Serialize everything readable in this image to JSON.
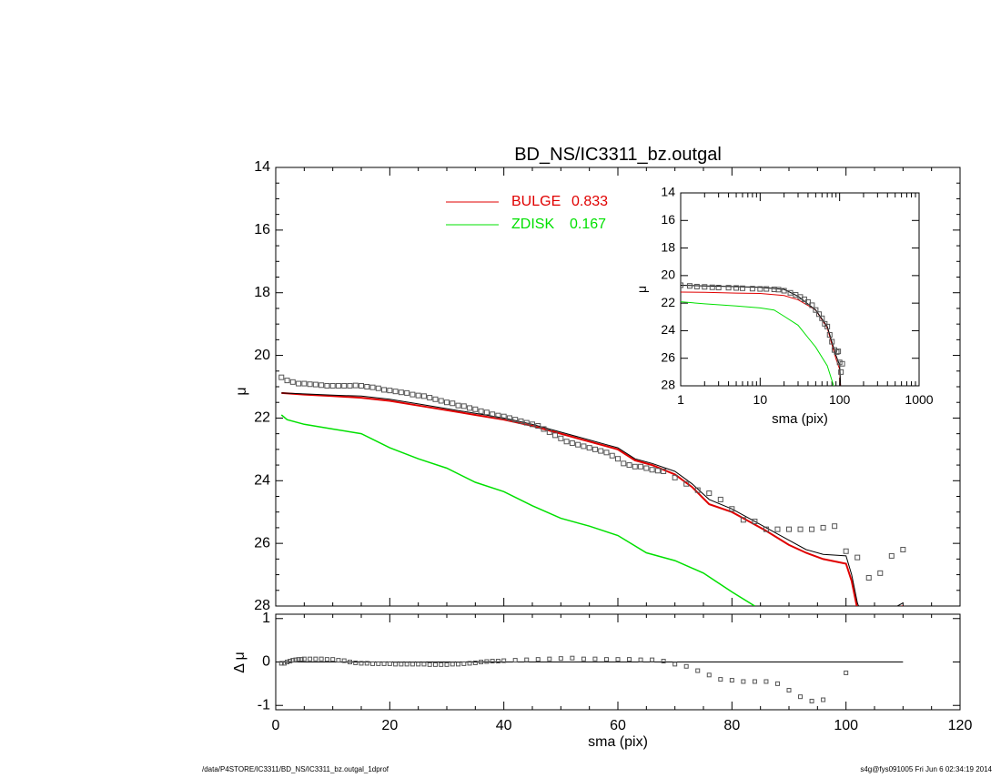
{
  "footer": {
    "left": "/data/P4STORE/IC3311/BD_NS/IC3311_bz.outgal_1dprof",
    "right": "s4g@fys091005  Fri Jun  6 02:34:19 2014"
  },
  "colors": {
    "bulge": "#e00000",
    "zdisk": "#00e000",
    "model": "#000000",
    "data": "#555555"
  },
  "chart_data": [
    {
      "type": "line",
      "panel": "main-profile",
      "title": "BD_NS/IC3311_bz.outgal",
      "xlabel": "",
      "ylabel": "μ",
      "xlim": [
        0,
        120
      ],
      "ylim": [
        28,
        14
      ],
      "y_inverted": true,
      "xticks": [
        0,
        20,
        40,
        60,
        80,
        100,
        120
      ],
      "yticks": [
        14,
        16,
        18,
        20,
        22,
        24,
        26,
        28
      ],
      "legend": [
        {
          "label": "BULGE",
          "value": "0.833",
          "color": "#e00000"
        },
        {
          "label": "ZDISK",
          "value": "0.167",
          "color": "#00e000"
        }
      ],
      "series": [
        {
          "name": "BULGE",
          "color": "#e00000",
          "x": [
            1,
            5,
            10,
            15,
            20,
            25,
            30,
            35,
            40,
            45,
            50,
            55,
            58,
            60,
            63,
            66,
            70,
            73,
            76,
            80,
            83,
            86,
            90,
            93,
            96,
            100,
            101,
            102,
            103,
            104,
            105,
            110
          ],
          "y": [
            21.2,
            21.25,
            21.3,
            21.35,
            21.45,
            21.6,
            21.75,
            21.9,
            22.05,
            22.25,
            22.5,
            22.75,
            22.9,
            23.0,
            23.35,
            23.5,
            23.8,
            24.2,
            24.75,
            25.0,
            25.3,
            25.6,
            26.05,
            26.3,
            26.5,
            26.65,
            27.2,
            28.1,
            28.5,
            28.6,
            28.5,
            28.0
          ]
        },
        {
          "name": "ZDISK",
          "color": "#00e000",
          "x": [
            1,
            2,
            5,
            10,
            15,
            20,
            25,
            30,
            35,
            40,
            45,
            50,
            55,
            60,
            65,
            70,
            75,
            80,
            84
          ],
          "y": [
            21.9,
            22.05,
            22.2,
            22.35,
            22.5,
            22.95,
            23.3,
            23.6,
            24.05,
            24.35,
            24.8,
            25.2,
            25.45,
            25.75,
            26.3,
            26.55,
            26.95,
            27.55,
            28.0
          ]
        },
        {
          "name": "",
          "color": "#000000",
          "x": [
            1,
            5,
            10,
            15,
            20,
            25,
            30,
            35,
            40,
            45,
            50,
            55,
            58,
            60,
            63,
            66,
            70,
            73,
            76,
            80,
            83,
            86,
            90,
            93,
            96,
            100,
            101,
            102,
            103,
            104,
            105,
            110
          ],
          "y": [
            21.2,
            21.23,
            21.27,
            21.3,
            21.4,
            21.55,
            21.7,
            21.85,
            22.0,
            22.2,
            22.45,
            22.7,
            22.85,
            22.95,
            23.3,
            23.45,
            23.7,
            24.1,
            24.6,
            24.9,
            25.2,
            25.5,
            25.9,
            26.2,
            26.35,
            26.4,
            27.0,
            27.9,
            28.4,
            28.5,
            28.4,
            27.9
          ]
        },
        {
          "name": "",
          "color": "#555555",
          "marker": "square",
          "x": [
            1,
            2,
            3,
            4,
            5,
            6,
            7,
            8,
            9,
            10,
            11,
            12,
            13,
            14,
            15,
            16,
            17,
            18,
            19,
            20,
            21,
            22,
            23,
            24,
            25,
            26,
            27,
            28,
            29,
            30,
            31,
            32,
            33,
            34,
            35,
            36,
            37,
            38,
            39,
            40,
            41,
            42,
            43,
            44,
            45,
            46,
            47,
            48,
            49,
            50,
            51,
            52,
            53,
            54,
            55,
            56,
            57,
            58,
            59,
            60,
            61,
            62,
            63,
            64,
            65,
            66,
            67,
            68,
            70,
            72,
            74,
            76,
            78,
            80,
            82,
            84,
            86,
            88,
            90,
            92,
            94,
            96,
            98,
            100,
            102,
            104,
            106,
            108,
            110
          ],
          "y": [
            20.7,
            20.8,
            20.85,
            20.9,
            20.9,
            20.92,
            20.93,
            20.95,
            20.97,
            20.97,
            20.97,
            20.97,
            20.97,
            20.96,
            20.97,
            21.0,
            21.02,
            21.05,
            21.1,
            21.12,
            21.15,
            21.18,
            21.2,
            21.25,
            21.28,
            21.3,
            21.35,
            21.4,
            21.45,
            21.5,
            21.53,
            21.6,
            21.62,
            21.68,
            21.72,
            21.78,
            21.82,
            21.88,
            21.92,
            21.95,
            22.0,
            22.05,
            22.1,
            22.15,
            22.2,
            22.25,
            22.35,
            22.45,
            22.55,
            22.65,
            22.75,
            22.8,
            22.85,
            22.9,
            22.95,
            23.0,
            23.05,
            23.1,
            23.2,
            23.3,
            23.45,
            23.5,
            23.55,
            23.55,
            23.6,
            23.65,
            23.68,
            23.7,
            23.9,
            24.1,
            24.3,
            24.4,
            24.6,
            24.9,
            25.25,
            25.3,
            25.55,
            25.55,
            25.55,
            25.55,
            25.55,
            25.5,
            25.45,
            26.25,
            26.45,
            27.1,
            26.95,
            26.4,
            26.2
          ]
        }
      ]
    },
    {
      "type": "line",
      "panel": "inset-log",
      "xlabel": "sma (pix)",
      "ylabel": "μ",
      "xscale": "log",
      "xlim": [
        1,
        1000
      ],
      "ylim": [
        28,
        14
      ],
      "y_inverted": true,
      "xticks": [
        1,
        10,
        100,
        1000
      ],
      "yticks": [
        14,
        16,
        18,
        20,
        22,
        24,
        26,
        28
      ],
      "series": [
        {
          "name": "BULGE",
          "color": "#e00000",
          "x": [
            1,
            2,
            5,
            10,
            20,
            30,
            50,
            70,
            90,
            100,
            103
          ],
          "y": [
            21.2,
            21.22,
            21.27,
            21.3,
            21.45,
            21.75,
            22.5,
            23.8,
            26.05,
            26.8,
            28.3
          ]
        },
        {
          "name": "ZDISK",
          "color": "#00e000",
          "x": [
            1,
            2,
            5,
            10,
            15,
            20,
            30,
            50,
            70,
            84
          ],
          "y": [
            21.9,
            22.05,
            22.2,
            22.35,
            22.5,
            22.95,
            23.6,
            25.2,
            26.55,
            28.0
          ]
        },
        {
          "name": "",
          "color": "#000000",
          "x": [
            1,
            2,
            5,
            10,
            20,
            30,
            50,
            70,
            90,
            100,
            103
          ],
          "y": [
            20.7,
            20.75,
            20.8,
            20.85,
            21.0,
            21.5,
            22.5,
            23.7,
            25.8,
            26.5,
            28.1
          ]
        },
        {
          "name": "",
          "color": "#555555",
          "marker": "square",
          "x": [
            1,
            1.3,
            1.6,
            2,
            2.5,
            3,
            4,
            5,
            6,
            8,
            10,
            12,
            15,
            17,
            20,
            24,
            28,
            32,
            36,
            40,
            45,
            50,
            55,
            60,
            65,
            70,
            75,
            80,
            86,
            92,
            96,
            100,
            104,
            108
          ],
          "y": [
            20.7,
            20.75,
            20.8,
            20.82,
            20.85,
            20.87,
            20.88,
            20.9,
            20.92,
            20.95,
            20.97,
            20.97,
            21.0,
            21.02,
            21.1,
            21.25,
            21.4,
            21.55,
            21.72,
            21.92,
            22.15,
            22.5,
            22.8,
            23.1,
            23.5,
            23.7,
            24.3,
            24.8,
            25.4,
            25.55,
            25.5,
            26.3,
            27.0,
            26.4
          ]
        }
      ]
    },
    {
      "type": "scatter",
      "panel": "residuals",
      "xlabel": "sma (pix)",
      "ylabel": "Δ μ",
      "xlim": [
        0,
        120
      ],
      "ylim": [
        -1.1,
        1.1
      ],
      "xticks": [
        0,
        20,
        40,
        60,
        80,
        100,
        120
      ],
      "yticks": [
        -1,
        0,
        1
      ],
      "zero_line": {
        "x": [
          1,
          110
        ],
        "y": 0
      },
      "series": [
        {
          "name": "",
          "color": "#555555",
          "marker": "square",
          "x": [
            1,
            1.5,
            2,
            2.5,
            3,
            3.5,
            4,
            4.5,
            5,
            6,
            7,
            8,
            9,
            10,
            11,
            12,
            13,
            14,
            15,
            16,
            17,
            18,
            19,
            20,
            21,
            22,
            23,
            24,
            25,
            26,
            27,
            28,
            29,
            30,
            31,
            32,
            33,
            34,
            35,
            36,
            37,
            38,
            39,
            40,
            42,
            44,
            46,
            48,
            50,
            52,
            54,
            56,
            58,
            60,
            62,
            64,
            66,
            68,
            70,
            72,
            74,
            76,
            78,
            80,
            82,
            84,
            86,
            88,
            90,
            92,
            94,
            96,
            100
          ],
          "y": [
            -0.03,
            -0.03,
            0.0,
            0.02,
            0.04,
            0.05,
            0.06,
            0.06,
            0.07,
            0.07,
            0.07,
            0.07,
            0.06,
            0.06,
            0.04,
            0.03,
            0.0,
            -0.02,
            -0.03,
            -0.03,
            -0.04,
            -0.04,
            -0.04,
            -0.04,
            -0.05,
            -0.05,
            -0.05,
            -0.05,
            -0.05,
            -0.05,
            -0.06,
            -0.06,
            -0.06,
            -0.06,
            -0.05,
            -0.05,
            -0.04,
            -0.03,
            -0.02,
            0.0,
            0.01,
            0.02,
            0.02,
            0.03,
            0.04,
            0.05,
            0.06,
            0.07,
            0.08,
            0.09,
            0.07,
            0.07,
            0.06,
            0.06,
            0.06,
            0.05,
            0.05,
            0.02,
            -0.05,
            -0.1,
            -0.2,
            -0.3,
            -0.4,
            -0.42,
            -0.45,
            -0.45,
            -0.45,
            -0.5,
            -0.65,
            -0.8,
            -0.9,
            -0.87,
            -0.25
          ]
        }
      ]
    }
  ]
}
